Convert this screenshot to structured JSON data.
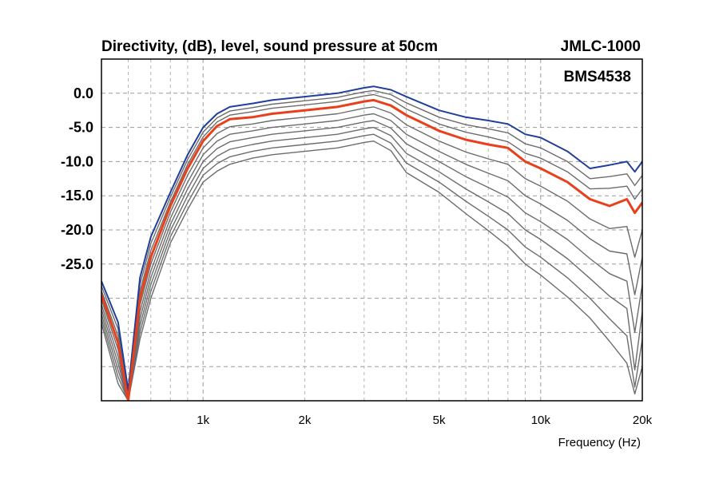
{
  "chart_data": {
    "type": "line",
    "title": "Directivity, (dB), level, sound pressure at 50cm",
    "model": "JMLC-1000",
    "driver": "BMS4538",
    "xlabel": "Frequency (Hz)",
    "ylabel": "",
    "x_scale": "log",
    "xlim": [
      500,
      20000
    ],
    "ylim": [
      -45,
      5
    ],
    "x_ticks": [
      {
        "value": 1000,
        "label": "1k"
      },
      {
        "value": 2000,
        "label": "2k"
      },
      {
        "value": 5000,
        "label": "5k"
      },
      {
        "value": 10000,
        "label": "10k"
      },
      {
        "value": 20000,
        "label": "20k"
      }
    ],
    "y_ticks": [
      {
        "value": 0,
        "label": "0.0"
      },
      {
        "value": -5,
        "label": "-5.0"
      },
      {
        "value": -10,
        "label": "-10.0"
      },
      {
        "value": -15,
        "label": "-15.0"
      },
      {
        "value": -20,
        "label": "-20.0"
      },
      {
        "value": -25,
        "label": "-25.0"
      }
    ],
    "grid": true,
    "colors": {
      "top_curve": "#1f3f9a",
      "highlight_curve": "#e8401c",
      "other_curves": "#6c6c6c"
    },
    "x": [
      500,
      560,
      600,
      650,
      700,
      800,
      900,
      1000,
      1100,
      1200,
      1400,
      1600,
      2000,
      2500,
      3000,
      3200,
      3600,
      4000,
      5000,
      6000,
      7000,
      8000,
      9000,
      10000,
      12000,
      14000,
      16000,
      18000,
      19000,
      20000
    ],
    "series": [
      {
        "y": [
          -27.5,
          -33.5,
          -43.5,
          -27.0,
          -21.0,
          -14.5,
          -9.0,
          -5.0,
          -3.0,
          -2.0,
          -1.5,
          -1.0,
          -0.5,
          0.0,
          0.8,
          1.0,
          0.5,
          -0.5,
          -2.5,
          -3.5,
          -4.0,
          -4.5,
          -6.0,
          -6.5,
          -8.5,
          -11.0,
          -10.5,
          -10.0,
          -11.5,
          -10.0
        ]
      },
      {
        "y": [
          -28.2,
          -34.5,
          -44.5,
          -28.0,
          -22.0,
          -15.2,
          -9.7,
          -5.7,
          -3.6,
          -2.6,
          -2.1,
          -1.6,
          -1.1,
          -0.6,
          0.2,
          0.4,
          -0.2,
          -1.4,
          -3.5,
          -4.6,
          -5.2,
          -5.8,
          -7.4,
          -8.0,
          -10.0,
          -12.5,
          -12.2,
          -11.8,
          -13.5,
          -12.0
        ]
      },
      {
        "y": [
          -28.9,
          -35.5,
          -45.0,
          -29.0,
          -23.0,
          -15.9,
          -10.4,
          -6.4,
          -4.2,
          -3.2,
          -2.7,
          -2.2,
          -1.7,
          -1.2,
          -0.4,
          -0.2,
          -0.9,
          -2.3,
          -4.5,
          -5.7,
          -6.4,
          -7.1,
          -8.8,
          -9.5,
          -11.5,
          -14.0,
          -13.9,
          -13.6,
          -15.5,
          -14.0
        ]
      },
      {
        "y": [
          -29.5,
          -36.5,
          -45.0,
          -30.0,
          -24.0,
          -16.5,
          -11.0,
          -7.0,
          -4.8,
          -3.8,
          -3.5,
          -3.0,
          -2.5,
          -2.0,
          -1.2,
          -1.0,
          -1.8,
          -3.2,
          -5.5,
          -6.8,
          -7.5,
          -8.0,
          -10.0,
          -11.0,
          -13.0,
          -15.5,
          -16.5,
          -15.5,
          -17.5,
          -16.0
        ]
      },
      {
        "y": [
          -30.2,
          -37.5,
          -45.0,
          -31.0,
          -25.0,
          -17.4,
          -12.0,
          -8.0,
          -5.9,
          -4.9,
          -4.5,
          -4.0,
          -3.5,
          -3.0,
          -2.2,
          -2.0,
          -2.9,
          -4.6,
          -7.0,
          -8.6,
          -9.6,
          -10.4,
          -12.5,
          -13.6,
          -15.8,
          -18.4,
          -19.8,
          -19.5,
          -24.0,
          -20.0
        ]
      },
      {
        "y": [
          -30.9,
          -38.5,
          -45.0,
          -32.0,
          -26.0,
          -18.3,
          -13.0,
          -9.0,
          -7.0,
          -6.0,
          -5.5,
          -5.0,
          -4.5,
          -4.0,
          -3.2,
          -3.0,
          -4.0,
          -6.0,
          -8.5,
          -10.4,
          -11.7,
          -12.8,
          -15.0,
          -16.2,
          -18.6,
          -21.3,
          -23.1,
          -23.5,
          -29.5,
          -24.0
        ]
      },
      {
        "y": [
          -31.6,
          -39.5,
          -45.0,
          -33.0,
          -27.0,
          -19.2,
          -14.0,
          -10.0,
          -8.1,
          -7.1,
          -6.5,
          -6.0,
          -5.5,
          -5.0,
          -4.2,
          -4.0,
          -5.1,
          -7.4,
          -10.0,
          -12.2,
          -13.8,
          -15.2,
          -17.5,
          -18.8,
          -21.4,
          -24.2,
          -26.4,
          -27.5,
          -35.0,
          -28.0
        ]
      },
      {
        "y": [
          -32.3,
          -40.5,
          -45.0,
          -34.0,
          -28.0,
          -20.1,
          -15.0,
          -11.0,
          -9.2,
          -8.2,
          -7.5,
          -7.0,
          -6.5,
          -6.0,
          -5.2,
          -5.0,
          -6.2,
          -8.8,
          -11.5,
          -14.0,
          -15.9,
          -17.6,
          -20.0,
          -21.4,
          -24.2,
          -27.1,
          -29.7,
          -31.5,
          -40.5,
          -32.0
        ]
      },
      {
        "y": [
          -33.0,
          -41.5,
          -45.0,
          -35.0,
          -29.0,
          -21.0,
          -16.0,
          -12.0,
          -10.3,
          -9.3,
          -8.5,
          -8.0,
          -7.5,
          -7.0,
          -6.2,
          -6.0,
          -7.3,
          -10.2,
          -13.0,
          -15.8,
          -18.0,
          -20.0,
          -22.5,
          -24.0,
          -27.0,
          -30.0,
          -33.0,
          -35.5,
          -43.0,
          -36.0
        ]
      },
      {
        "y": [
          -33.7,
          -42.5,
          -45.0,
          -36.0,
          -30.0,
          -21.9,
          -17.0,
          -13.0,
          -11.4,
          -10.4,
          -9.5,
          -9.0,
          -8.5,
          -8.0,
          -7.2,
          -7.0,
          -8.4,
          -11.6,
          -14.5,
          -17.6,
          -20.1,
          -22.4,
          -25.0,
          -26.6,
          -29.8,
          -32.9,
          -36.3,
          -39.5,
          -44.0,
          -40.0
        ]
      }
    ],
    "highlight_index": 3
  }
}
